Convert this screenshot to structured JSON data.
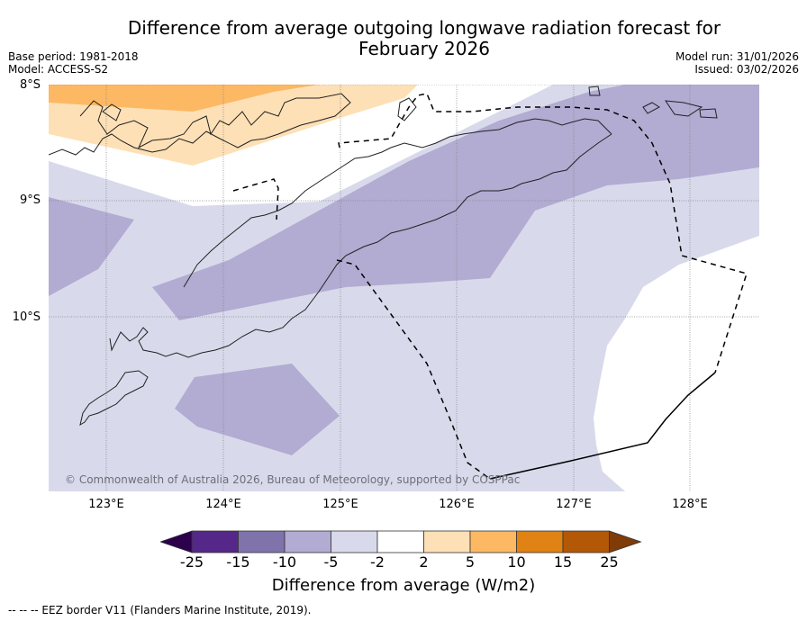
{
  "header": {
    "title_line1": "Difference from average outgoing longwave radiation forecast for",
    "title_line2": "February 2026",
    "base_period": "Base period: 1981-2018",
    "model": "Model: ACCESS-S2",
    "model_run": "Model run: 31/01/2026",
    "issued": "Issued: 03/02/2026"
  },
  "map": {
    "lat_labels": [
      "8°S",
      "9°S",
      "10°S"
    ],
    "lon_labels": [
      "123°E",
      "124°E",
      "125°E",
      "126°E",
      "127°E",
      "128°E"
    ],
    "copyright": "© Commonwealth of Australia 2026, Bureau of Meteorology, supported by COSPPac",
    "region_colors": {
      "below_-25": "#2d004b",
      "-25_to_-15": "#542788",
      "-15_to_-10": "#8073ac",
      "-10_to_-5": "#b2abd2",
      "-5_to_-2": "#d8daeb",
      "-2_to_2": "#ffffff",
      "2_to_5": "#fee0b6",
      "5_to_10": "#fdb863",
      "10_to_15": "#e08214",
      "15_to_25": "#b35806",
      "above_25": "#7f3b08"
    }
  },
  "colorbar": {
    "ticks": [
      "-25",
      "-15",
      "-10",
      "-5",
      "-2",
      "2",
      "5",
      "10",
      "15",
      "25"
    ],
    "colors": [
      "#542788",
      "#8073ac",
      "#b2abd2",
      "#d8daeb",
      "#ffffff",
      "#fee0b6",
      "#fdb863",
      "#e08214",
      "#b35806"
    ],
    "under_color": "#2d004b",
    "over_color": "#7f3b08",
    "label": "Difference from average (W/m2)"
  },
  "footer": {
    "eez_note": "--  --  -- EEZ border V11 (Flanders Marine Institute, 2019)."
  }
}
